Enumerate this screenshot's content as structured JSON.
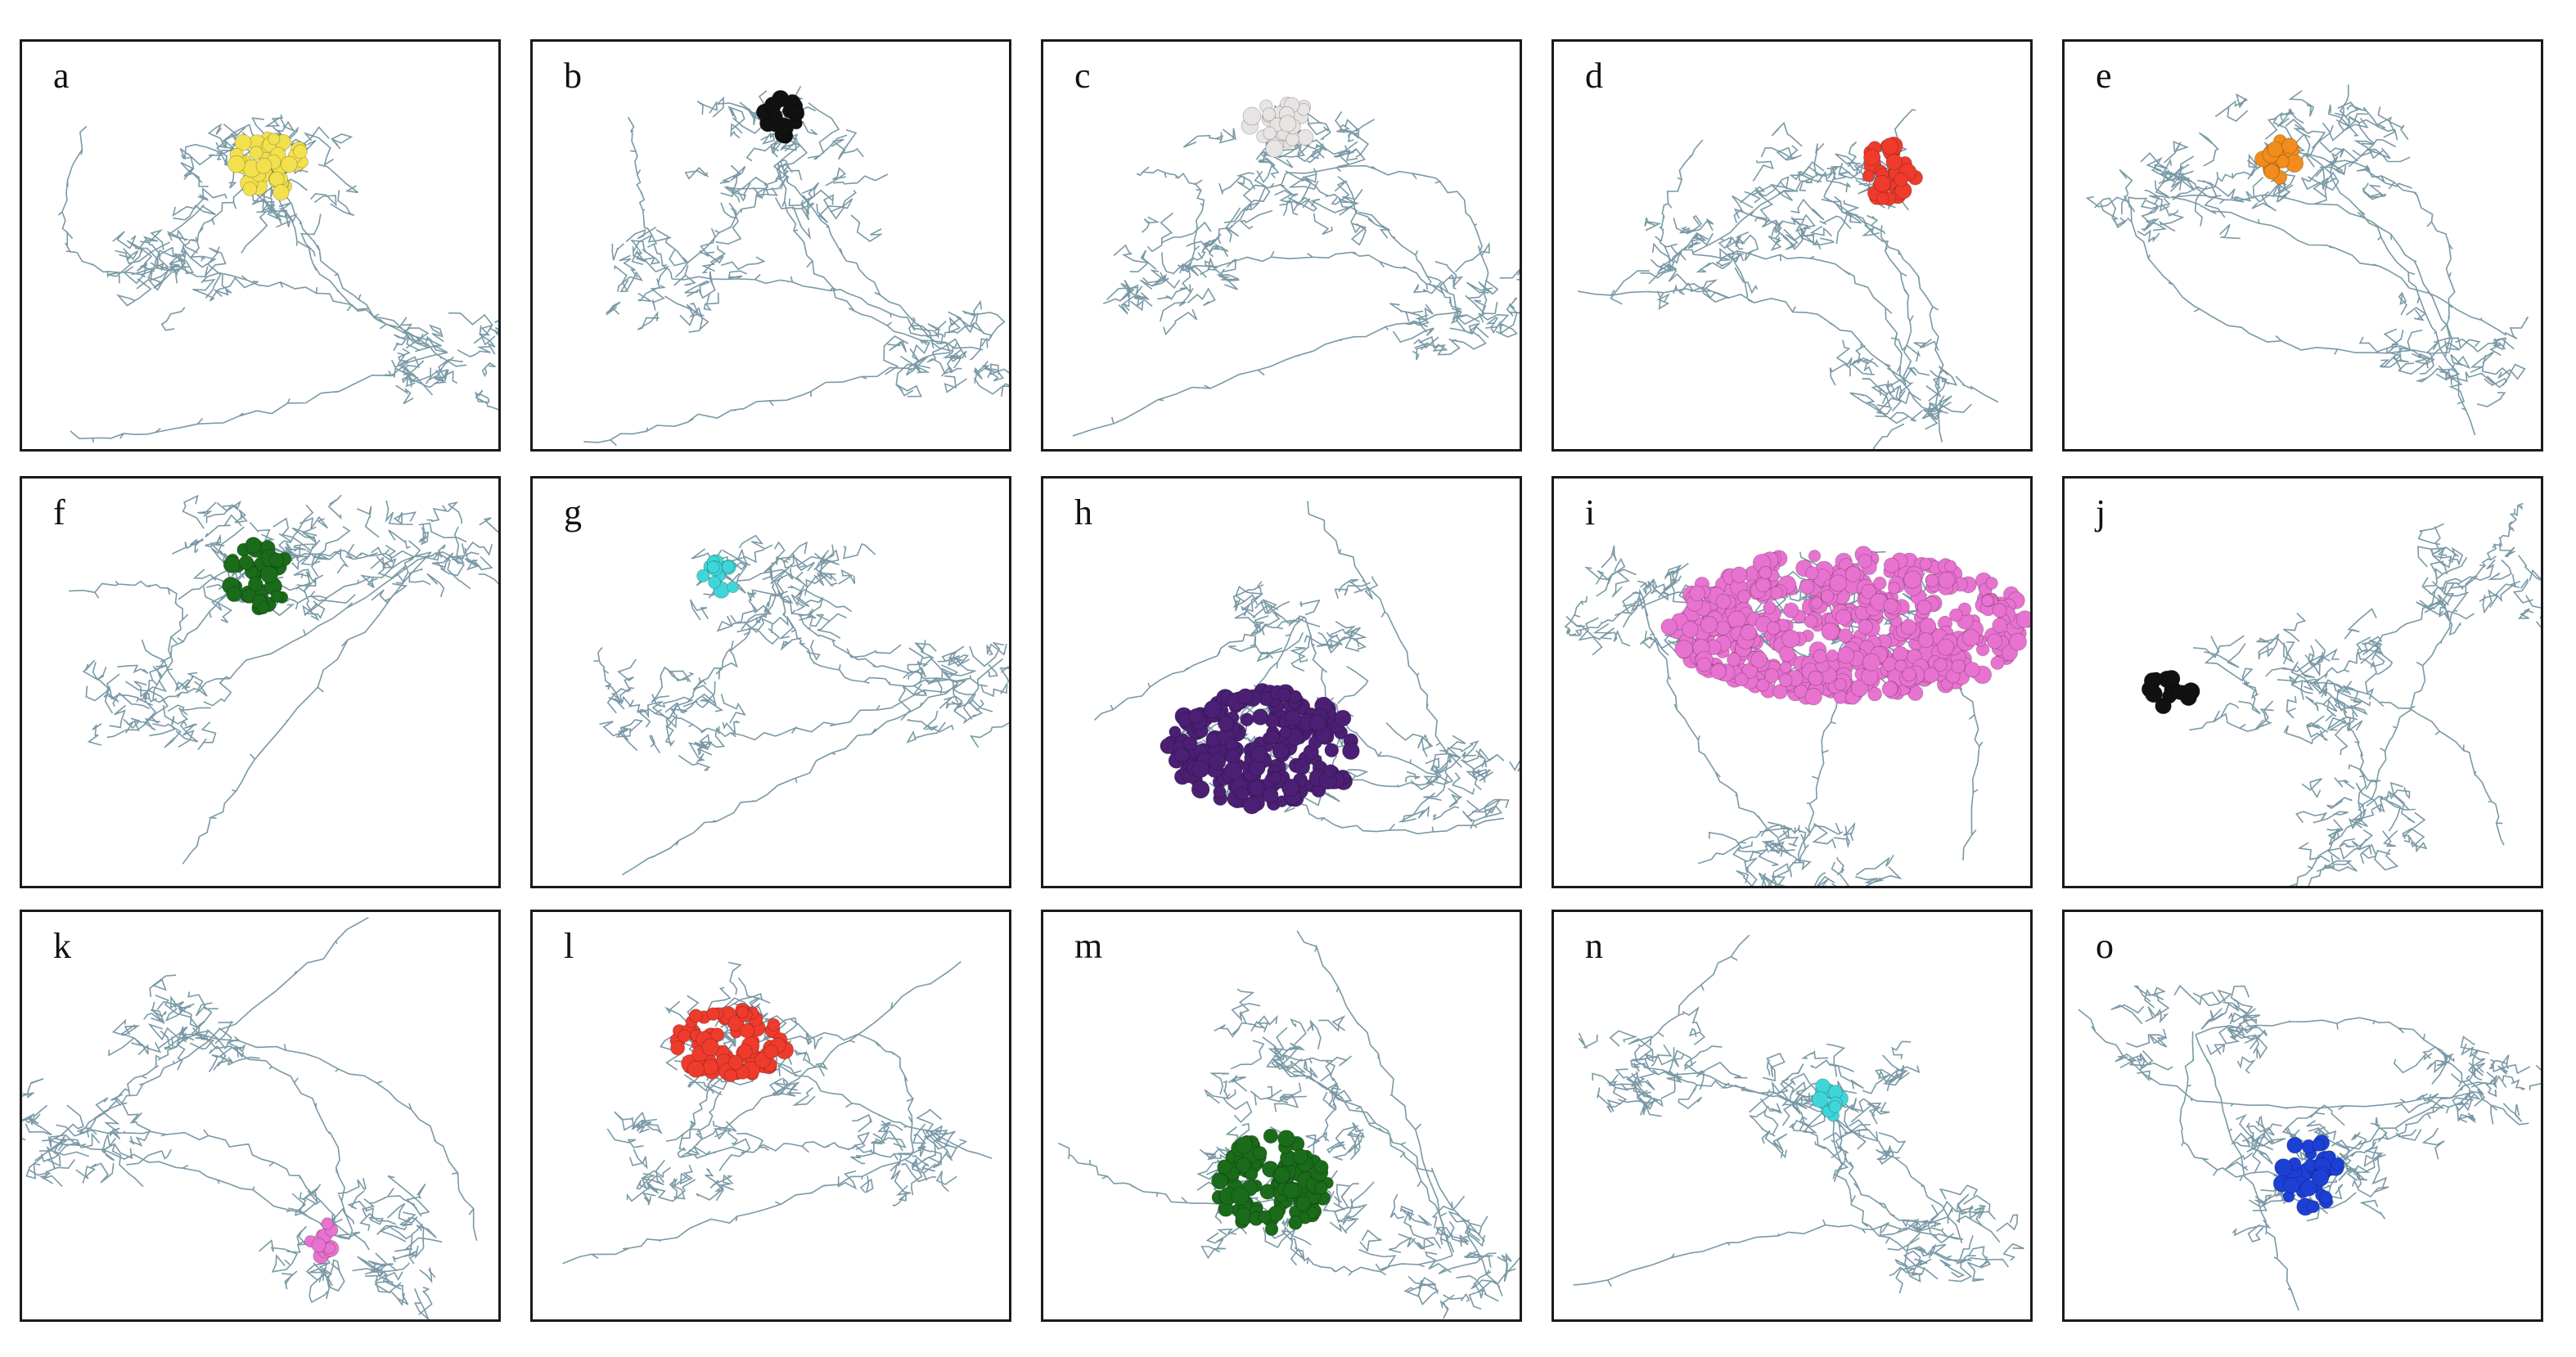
{
  "figure": {
    "panels": [
      {
        "label": "a",
        "ligand_color": "#f2e04d",
        "ligand_color_name": "yellow"
      },
      {
        "label": "b",
        "ligand_color": "#111111",
        "ligand_color_name": "black"
      },
      {
        "label": "c",
        "ligand_color": "#e8e4e4",
        "ligand_color_name": "white"
      },
      {
        "label": "d",
        "ligand_color": "#ef3b2c",
        "ligand_color_name": "red"
      },
      {
        "label": "e",
        "ligand_color": "#f28c1c",
        "ligand_color_name": "orange"
      },
      {
        "label": "f",
        "ligand_color": "#1a6b1a",
        "ligand_color_name": "green"
      },
      {
        "label": "g",
        "ligand_color": "#3fd6d9",
        "ligand_color_name": "cyan"
      },
      {
        "label": "h",
        "ligand_color": "#4b1f73",
        "ligand_color_name": "purple"
      },
      {
        "label": "i",
        "ligand_color": "#e872d0",
        "ligand_color_name": "pink"
      },
      {
        "label": "j",
        "ligand_color": "#111111",
        "ligand_color_name": "black"
      },
      {
        "label": "k",
        "ligand_color": "#e872d0",
        "ligand_color_name": "pink"
      },
      {
        "label": "l",
        "ligand_color": "#ef3b2c",
        "ligand_color_name": "red"
      },
      {
        "label": "m",
        "ligand_color": "#1a6b1a",
        "ligand_color_name": "green"
      },
      {
        "label": "n",
        "ligand_color": "#3fd6d9",
        "ligand_color_name": "cyan"
      },
      {
        "label": "o",
        "ligand_color": "#1c3fd6",
        "ligand_color_name": "blue"
      }
    ],
    "colors": {
      "backbone": "#7a99a6",
      "border": "#1a1a1a",
      "background": "#ffffff"
    }
  }
}
